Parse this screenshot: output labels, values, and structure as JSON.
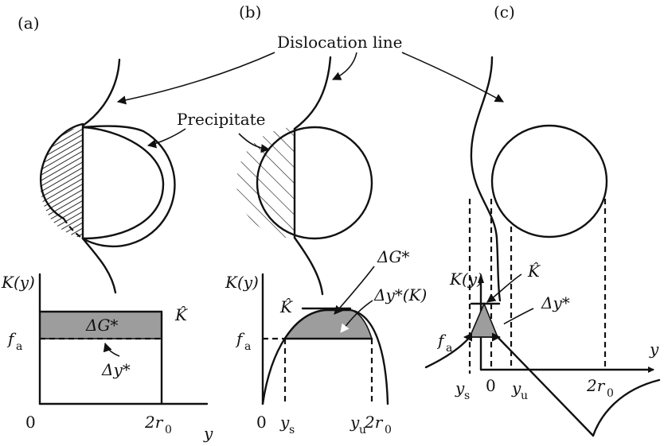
{
  "labels": {
    "panel_a": "(a)",
    "panel_b": "(b)",
    "panel_c": "(c)",
    "dislocation_line": "Dislocation line",
    "precipitate": "Precipitate"
  },
  "panel_a": {
    "yaxis": "K(y)",
    "khat": "K̂",
    "fa": "f",
    "fa_sub": "a",
    "dG": "ΔG*",
    "dy": "Δy*",
    "origin": "0",
    "two_r0": "2r",
    "two_r0_sub": "0",
    "xaxis": "y"
  },
  "panel_b": {
    "yaxis": "K(y)",
    "khat": "K̂",
    "fa": "f",
    "fa_sub": "a",
    "dG": "ΔG*",
    "dy": "Δy*(K)",
    "origin": "0",
    "ys": "y",
    "ys_sub": "s",
    "yu": "y",
    "yu_sub": "u",
    "two_r0": "2r",
    "two_r0_sub": "0"
  },
  "panel_c": {
    "yaxis": "K(y)",
    "khat": "K̂",
    "fa": "f",
    "fa_sub": "a",
    "dy": "Δy*",
    "xaxis": "y",
    "origin": "0",
    "ys": "y",
    "ys_sub": "s",
    "yu": "y",
    "yu_sub": "u",
    "two_r0": "2r",
    "two_r0_sub": "0"
  }
}
